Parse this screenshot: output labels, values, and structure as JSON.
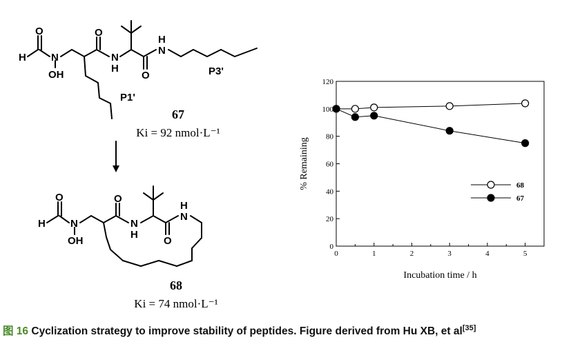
{
  "molecule_67": {
    "number": "67",
    "ki": "Ki = 92 nmol·L⁻¹",
    "labels": {
      "p1": "P1'",
      "p3": "P3'"
    },
    "atoms": {
      "h": "H",
      "o": "O",
      "n": "N",
      "oh": "OH",
      "nh": "N"
    }
  },
  "molecule_68": {
    "number": "68",
    "ki": "Ki = 74 nmol·L⁻¹",
    "atoms": {
      "h": "H",
      "o": "O",
      "n": "N",
      "oh": "OH"
    }
  },
  "caption": {
    "figure_no": "图 16",
    "text": "Cyclization strategy to improve stability of peptides. Figure derived from Hu XB, et al",
    "ref": "[35]"
  },
  "chart_data": {
    "type": "line",
    "xlabel": "Incubation time / h",
    "ylabel": "% Remaining",
    "xlim": [
      0,
      5.5
    ],
    "ylim": [
      0,
      120
    ],
    "x_ticks": [
      0,
      1,
      2,
      3,
      4,
      5
    ],
    "y_ticks": [
      0,
      20,
      40,
      60,
      80,
      100,
      120
    ],
    "grid": false,
    "legend_position": "right-middle",
    "series": [
      {
        "name": "68",
        "marker": "open-circle",
        "color": "#000000",
        "x": [
          0,
          0.5,
          1,
          3,
          5
        ],
        "y": [
          100,
          100,
          101,
          102,
          104
        ]
      },
      {
        "name": "67",
        "marker": "filled-circle",
        "color": "#000000",
        "x": [
          0,
          0.5,
          1,
          3,
          5
        ],
        "y": [
          100,
          94,
          95,
          84,
          75
        ]
      }
    ]
  }
}
